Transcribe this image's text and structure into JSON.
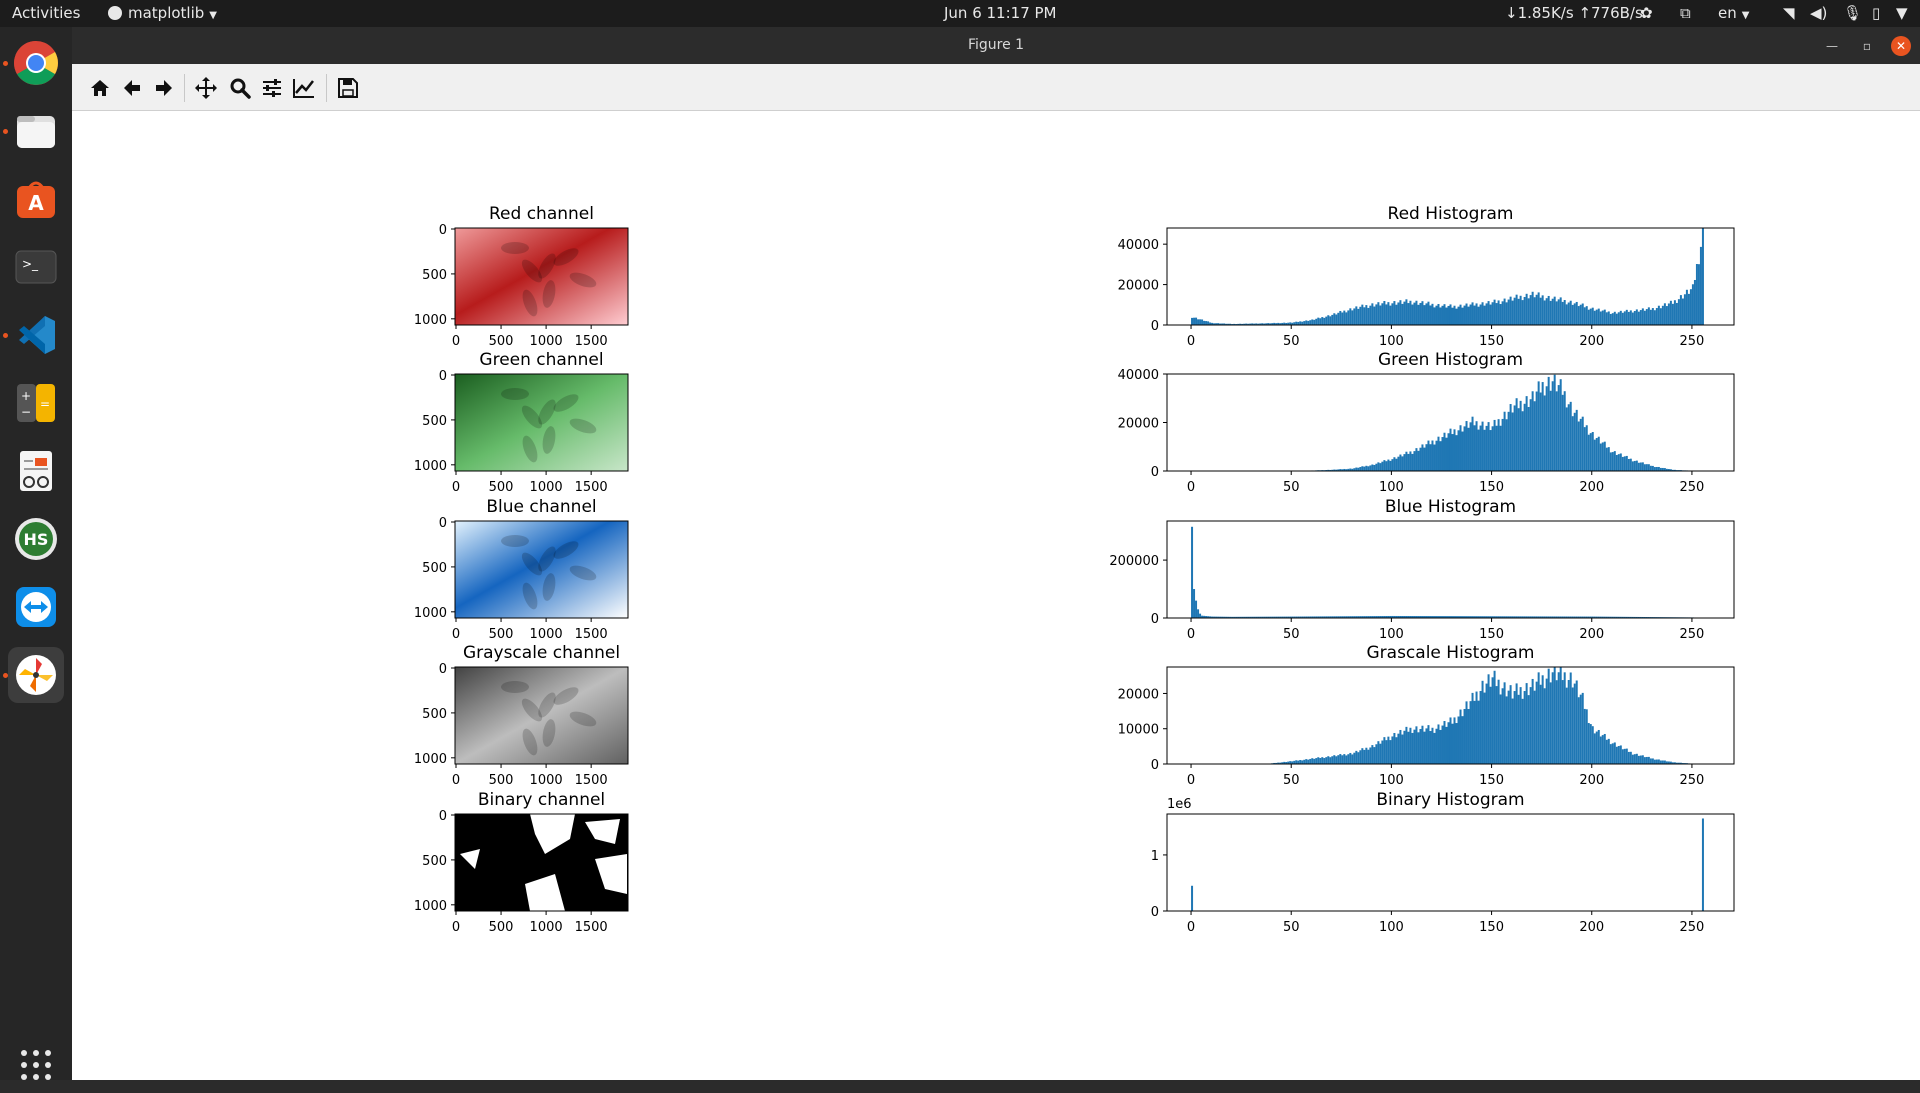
{
  "topbar": {
    "activities": "Activities",
    "app_menu": "matplotlib",
    "clock": "Jun 6  11:17 PM",
    "net_speed": "↓1.85K/s ↑776B/s",
    "lang": "en"
  },
  "window": {
    "title": "Figure 1"
  },
  "dock": {
    "apps": [
      "chrome-icon",
      "files-icon",
      "software-center-icon",
      "terminal-icon",
      "vscode-icon",
      "calculator-icon",
      "document-viewer-icon",
      "hs-icon",
      "teamviewer-icon",
      "pinwheel-app-icon"
    ]
  },
  "toolbar": {
    "tools": [
      "home-icon",
      "back-icon",
      "forward-icon",
      "pan-icon",
      "zoom-icon",
      "configure-subplots-icon",
      "edit-axes-icon",
      "save-icon"
    ]
  },
  "colors": {
    "bar": "#1f77b4",
    "red_cmap": "#c62828",
    "green_cmap": "#2e7d32",
    "blue_cmap": "#1565c0"
  },
  "images": [
    {
      "title": "Red channel",
      "cmap": "red"
    },
    {
      "title": "Green channel",
      "cmap": "green"
    },
    {
      "title": "Blue channel",
      "cmap": "blue"
    },
    {
      "title": "Grayscale channel",
      "cmap": "gray"
    },
    {
      "title": "Binary channel",
      "cmap": "binary"
    }
  ],
  "image_axes": {
    "xticks": [
      "0",
      "500",
      "1000",
      "1500"
    ],
    "yticks": [
      "0",
      "500",
      "1000"
    ]
  },
  "chart_data": [
    {
      "type": "bar",
      "title": "Red Histogram",
      "xlim": [
        -12,
        271
      ],
      "ylim": [
        0,
        48000
      ],
      "xticks": [
        0,
        50,
        100,
        150,
        200,
        250
      ],
      "yticks": [
        0,
        20000,
        40000
      ],
      "ytick_labels": [
        "0",
        "20000",
        "40000"
      ],
      "x": [
        0,
        10,
        20,
        30,
        40,
        50,
        60,
        70,
        80,
        90,
        100,
        110,
        120,
        130,
        140,
        150,
        160,
        170,
        180,
        190,
        200,
        210,
        220,
        230,
        240,
        250,
        255
      ],
      "values": [
        4000,
        1000,
        500,
        700,
        900,
        1200,
        2500,
        5000,
        8000,
        10000,
        11000,
        11500,
        10000,
        9000,
        10000,
        11000,
        13000,
        15000,
        13000,
        11000,
        8000,
        6000,
        7000,
        8000,
        11000,
        18000,
        45000
      ]
    },
    {
      "type": "bar",
      "title": "Green Histogram",
      "xlim": [
        -12,
        271
      ],
      "ylim": [
        0,
        40000
      ],
      "xticks": [
        0,
        50,
        100,
        150,
        200,
        250
      ],
      "yticks": [
        0,
        20000,
        40000
      ],
      "ytick_labels": [
        "0",
        "20000",
        "40000"
      ],
      "x": [
        60,
        70,
        80,
        90,
        100,
        110,
        120,
        130,
        140,
        150,
        155,
        160,
        170,
        175,
        180,
        185,
        190,
        200,
        210,
        220,
        230,
        240,
        250
      ],
      "values": [
        200,
        500,
        1000,
        2500,
        5000,
        8000,
        12000,
        16000,
        20000,
        18000,
        22000,
        26000,
        30000,
        35000,
        37000,
        33000,
        25000,
        15000,
        8000,
        4500,
        2000,
        500,
        100
      ]
    },
    {
      "type": "bar",
      "title": "Blue Histogram",
      "xlim": [
        -12,
        271
      ],
      "ylim": [
        0,
        335000
      ],
      "xticks": [
        0,
        50,
        100,
        150,
        200,
        250
      ],
      "yticks": [
        0,
        200000
      ],
      "ytick_labels": [
        "0",
        "200000"
      ],
      "x": [
        0,
        1,
        2,
        3,
        4,
        5,
        10,
        20,
        50,
        100,
        150,
        200,
        250
      ],
      "values": [
        315000,
        100000,
        60000,
        30000,
        15000,
        8000,
        5000,
        4000,
        5000,
        7000,
        6000,
        5000,
        2000
      ]
    },
    {
      "type": "bar",
      "title": "Grascale Histogram",
      "xlim": [
        -12,
        271
      ],
      "ylim": [
        0,
        27500
      ],
      "xticks": [
        0,
        50,
        100,
        150,
        200,
        250
      ],
      "yticks": [
        0,
        10000,
        20000
      ],
      "ytick_labels": [
        "0",
        "10000",
        "20000"
      ],
      "x": [
        40,
        50,
        60,
        70,
        80,
        90,
        100,
        110,
        120,
        130,
        140,
        145,
        150,
        160,
        170,
        180,
        185,
        190,
        195,
        200,
        210,
        220,
        230,
        240,
        250
      ],
      "values": [
        200,
        800,
        1500,
        2200,
        3000,
        5000,
        8000,
        10000,
        9800,
        12000,
        18000,
        22000,
        24000,
        20000,
        22000,
        26000,
        25000,
        24000,
        18000,
        10000,
        6000,
        3000,
        1500,
        500,
        100
      ]
    },
    {
      "type": "bar",
      "title": "Binary Histogram",
      "xlim": [
        -12,
        271
      ],
      "ylim": [
        0,
        1.73
      ],
      "xticks": [
        0,
        50,
        100,
        150,
        200,
        250
      ],
      "yticks": [
        0,
        1
      ],
      "ytick_labels": [
        "0",
        "1"
      ],
      "offset_label": "1e6",
      "x": [
        0,
        255
      ],
      "values": [
        0.45,
        1.65
      ]
    }
  ]
}
